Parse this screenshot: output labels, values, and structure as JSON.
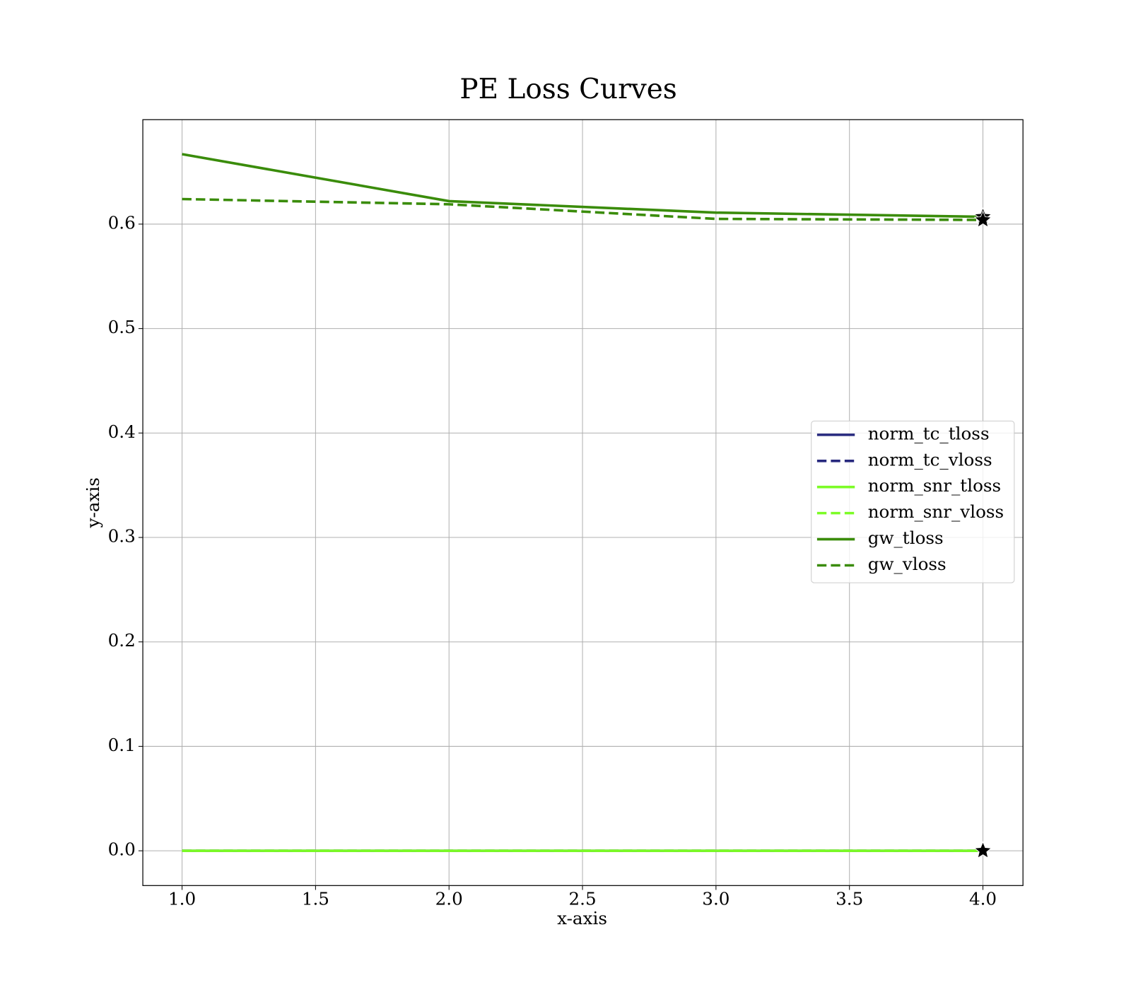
{
  "chart_data": {
    "type": "line",
    "title": "PE Loss Curves",
    "x_label": "x-axis",
    "y_label": "y-axis",
    "x": [
      1,
      2,
      3,
      4
    ],
    "series": [
      {
        "name": "norm_tc_tloss",
        "color": "#27297e",
        "style": "solid",
        "values": [
          0,
          0,
          0,
          0
        ]
      },
      {
        "name": "norm_tc_vloss",
        "color": "#27297e",
        "style": "dashed",
        "values": [
          0,
          0,
          0,
          0
        ]
      },
      {
        "name": "norm_snr_tloss",
        "color": "#7cfc26",
        "style": "solid",
        "values": [
          0,
          0,
          0,
          0
        ]
      },
      {
        "name": "norm_snr_vloss",
        "color": "#7cfc26",
        "style": "dashed",
        "values": [
          0,
          0,
          0,
          0
        ]
      },
      {
        "name": "gw_tloss",
        "color": "#3a8c0a",
        "style": "solid",
        "values": [
          0.667,
          0.622,
          0.611,
          0.607
        ]
      },
      {
        "name": "gw_vloss",
        "color": "#3a8c0a",
        "style": "dashed",
        "values": [
          0.624,
          0.619,
          0.605,
          0.604
        ]
      }
    ],
    "xlim": [
      0.853,
      4.15
    ],
    "xticks": [
      {
        "value": 1,
        "label": "1.0"
      },
      1.5,
      {
        "value": 2,
        "label": "2.0"
      },
      2.5,
      {
        "value": 3,
        "label": "3.0"
      },
      3.5,
      {
        "value": 4,
        "label": "4.0"
      }
    ],
    "ylim": [
      -0.0333,
      0.7
    ],
    "yticks": [
      {
        "value": 0,
        "label": "0.0"
      },
      0.1,
      0.2,
      0.3,
      0.4,
      0.5,
      0.6
    ],
    "grid": true,
    "legend": "center right",
    "end_marker": "star"
  }
}
